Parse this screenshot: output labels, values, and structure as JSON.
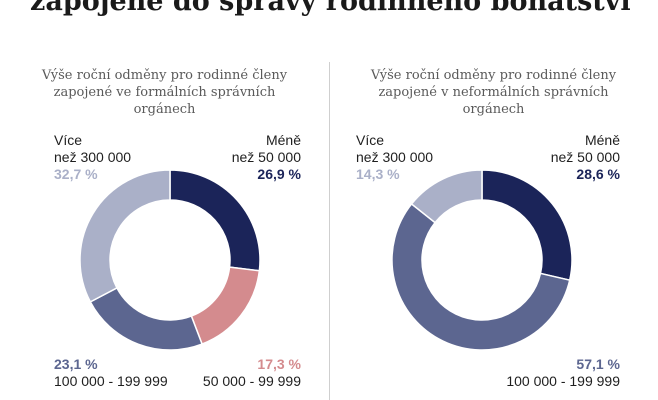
{
  "title": [
    "zapojené do správy rodinného bohatství"
  ],
  "colors": {
    "navy": "#1b2459",
    "slate": "#5c6690",
    "pink": "#d48b8e",
    "lavender": "#aab0c8"
  },
  "chart_data": [
    {
      "type": "pie",
      "title": [
        "Výše roční odměny pro rodinné členy",
        "zapojené ve formálních správních",
        "orgánech"
      ],
      "slices": [
        {
          "category": [
            "Méně",
            "než 50 000"
          ],
          "value": 26.9,
          "label": "26,9 %",
          "color": "#1b2459"
        },
        {
          "category": [
            "50 000 - 99 999"
          ],
          "value": 17.3,
          "label": "17,3 %",
          "color": "#d48b8e"
        },
        {
          "category": [
            "100 000 - 199 999"
          ],
          "value": 23.1,
          "label": "23,1 %",
          "color": "#5c6690"
        },
        {
          "category": [
            "Více",
            "než 300 000"
          ],
          "value": 32.7,
          "label": "32,7 %",
          "color": "#aab0c8"
        }
      ]
    },
    {
      "type": "pie",
      "title": [
        "Výše roční odměny pro rodinné členy",
        "zapojené v neformálních správních",
        "orgánech"
      ],
      "slices": [
        {
          "category": [
            "Méně",
            "než 50 000"
          ],
          "value": 28.6,
          "label": "28,6 %",
          "color": "#1b2459"
        },
        {
          "category": [
            "100 000 - 199 999"
          ],
          "value": 57.1,
          "label": "57,1 %",
          "color": "#5c6690"
        },
        {
          "category": [
            "Více",
            "než 300 000"
          ],
          "value": 14.3,
          "label": "14,3 %",
          "color": "#aab0c8"
        }
      ]
    }
  ]
}
